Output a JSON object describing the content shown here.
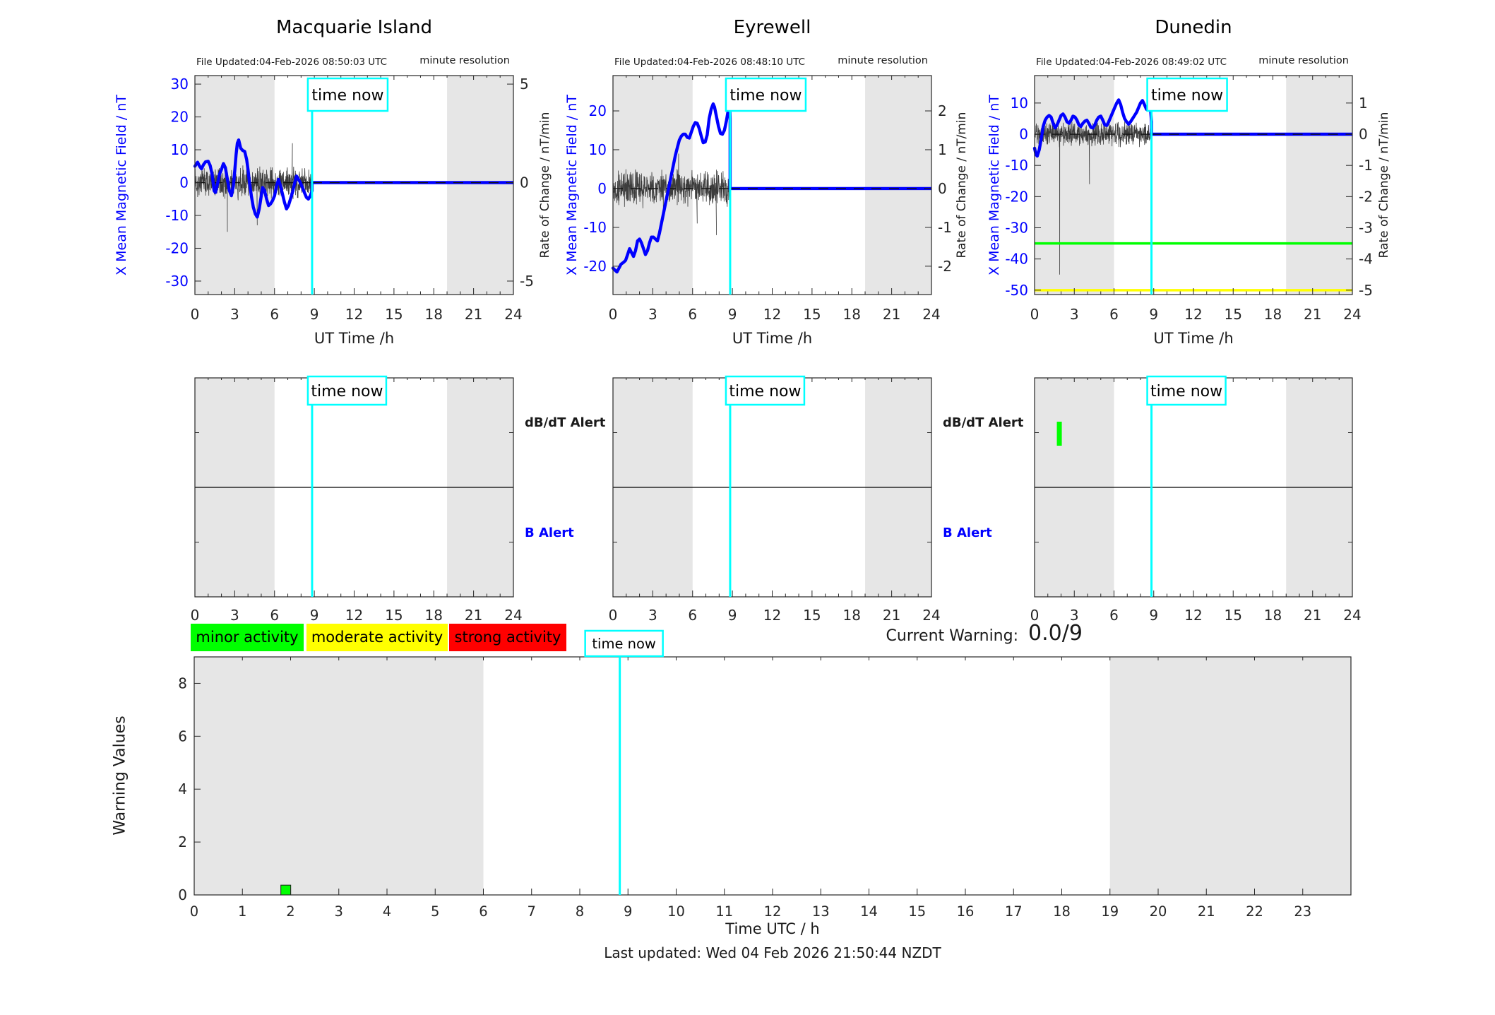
{
  "colors": {
    "blue": "#0000ff",
    "cyan": "#00ffff",
    "night_band": "#e6e6e6",
    "noise": "#3c3c3c",
    "axis": "#262626",
    "minor": "#00ff00",
    "moderate": "#ffff00",
    "strong": "#ff0000"
  },
  "time_now": {
    "label": "time now",
    "hour": 8.83
  },
  "chart_data": [
    {
      "id": "macquarie-top",
      "type": "line",
      "station": "Macquarie Island",
      "file_updated": "File Updated:04-Feb-2026 08:50:03 UTC",
      "resolution_note": "minute resolution",
      "xlabel": "UT Time /h",
      "ylabel_left": "X Mean Magnetic Field / nT",
      "ylabel_right": "Rate of Change / nT/min",
      "xlim": [
        0,
        24
      ],
      "xticks": [
        0,
        3,
        6,
        9,
        12,
        15,
        18,
        21,
        24
      ],
      "ylim": [
        -34.1,
        32.6
      ],
      "yticks_left": [
        30,
        20,
        10,
        0,
        -10,
        -20,
        -30
      ],
      "yticks_right": [
        5,
        0,
        -5
      ],
      "right_to_left_factor": 6,
      "night_bands": [
        [
          0,
          6
        ],
        [
          19,
          24
        ]
      ],
      "series": {
        "name": "X mean magnetic field",
        "points": [
          [
            0,
            5
          ],
          [
            0.2,
            6.2
          ],
          [
            0.35,
            5
          ],
          [
            0.5,
            4.2
          ],
          [
            0.65,
            5.5
          ],
          [
            0.8,
            6.3
          ],
          [
            1,
            6.5
          ],
          [
            1.15,
            5.2
          ],
          [
            1.3,
            2.5
          ],
          [
            1.45,
            -2.5
          ],
          [
            1.55,
            -3
          ],
          [
            1.7,
            -0.5
          ],
          [
            1.85,
            2.5
          ],
          [
            2,
            4
          ],
          [
            2.15,
            5.8
          ],
          [
            2.3,
            4.5
          ],
          [
            2.45,
            1
          ],
          [
            2.6,
            -2.5
          ],
          [
            2.75,
            -4
          ],
          [
            2.9,
            -1
          ],
          [
            3,
            3.5
          ],
          [
            3.1,
            8.5
          ],
          [
            3.2,
            12
          ],
          [
            3.3,
            13
          ],
          [
            3.45,
            10.5
          ],
          [
            3.6,
            9.8
          ],
          [
            3.75,
            9.5
          ],
          [
            3.9,
            7
          ],
          [
            4,
            4
          ],
          [
            4.1,
            0.5
          ],
          [
            4.25,
            -4
          ],
          [
            4.4,
            -7.5
          ],
          [
            4.55,
            -9.5
          ],
          [
            4.7,
            -10.5
          ],
          [
            4.85,
            -8
          ],
          [
            5,
            -4
          ],
          [
            5.1,
            -1.5
          ],
          [
            5.25,
            -2.5
          ],
          [
            5.4,
            -5
          ],
          [
            5.55,
            -7
          ],
          [
            5.7,
            -6.5
          ],
          [
            5.85,
            -5.5
          ],
          [
            6,
            -4
          ],
          [
            6.15,
            -1
          ],
          [
            6.3,
            1
          ],
          [
            6.45,
            -1
          ],
          [
            6.6,
            -3.5
          ],
          [
            6.75,
            -6
          ],
          [
            6.9,
            -8
          ],
          [
            7.05,
            -7
          ],
          [
            7.2,
            -5
          ],
          [
            7.35,
            -3
          ],
          [
            7.5,
            -0.5
          ],
          [
            7.65,
            2
          ],
          [
            7.8,
            1
          ],
          [
            7.95,
            0
          ],
          [
            8.1,
            -1.5
          ],
          [
            8.25,
            -3
          ],
          [
            8.4,
            -4.5
          ],
          [
            8.55,
            -5
          ],
          [
            8.7,
            -4
          ],
          [
            8.83,
            -2.5
          ]
        ]
      },
      "forecast": {
        "from_hour": 8.83,
        "value": 0
      },
      "noise": {
        "name": "rate of change",
        "amplitude": 5.5,
        "seed": 7,
        "spikes": [
          [
            2.45,
            -15
          ],
          [
            4.7,
            -13
          ],
          [
            7.35,
            12
          ]
        ]
      },
      "hlines": []
    },
    {
      "id": "eyrewell-top",
      "type": "line",
      "station": "Eyrewell",
      "file_updated": "File Updated:04-Feb-2026 08:48:10 UTC",
      "resolution_note": "minute resolution",
      "xlabel": "UT Time /h",
      "ylabel_left": "X Mean Magnetic Field / nT",
      "ylabel_right": "Rate of Change / nT/min",
      "xlim": [
        0,
        24
      ],
      "xticks": [
        0,
        3,
        6,
        9,
        12,
        15,
        18,
        21,
        24
      ],
      "ylim": [
        -27.3,
        29.1
      ],
      "yticks_left": [
        20,
        10,
        0,
        -10,
        -20
      ],
      "yticks_right": [
        2,
        1,
        0,
        -1,
        -2
      ],
      "right_to_left_factor": 10,
      "night_bands": [
        [
          0,
          6
        ],
        [
          19,
          24
        ]
      ],
      "series": {
        "name": "X mean magnetic field",
        "points": [
          [
            0,
            -20.5
          ],
          [
            0.15,
            -21
          ],
          [
            0.3,
            -21.5
          ],
          [
            0.45,
            -20.5
          ],
          [
            0.6,
            -19.5
          ],
          [
            0.8,
            -19
          ],
          [
            0.95,
            -18.5
          ],
          [
            1.1,
            -17
          ],
          [
            1.25,
            -15.5
          ],
          [
            1.4,
            -16.5
          ],
          [
            1.55,
            -17.5
          ],
          [
            1.7,
            -16
          ],
          [
            1.85,
            -13.5
          ],
          [
            2,
            -13
          ],
          [
            2.15,
            -14
          ],
          [
            2.3,
            -15.5
          ],
          [
            2.45,
            -17
          ],
          [
            2.6,
            -16
          ],
          [
            2.75,
            -14
          ],
          [
            2.9,
            -12.5
          ],
          [
            3.05,
            -12.5
          ],
          [
            3.2,
            -13
          ],
          [
            3.35,
            -13.5
          ],
          [
            3.5,
            -11.5
          ],
          [
            3.65,
            -9
          ],
          [
            3.8,
            -6.5
          ],
          [
            3.95,
            -4
          ],
          [
            4.1,
            -1.5
          ],
          [
            4.25,
            1
          ],
          [
            4.4,
            3.5
          ],
          [
            4.55,
            6
          ],
          [
            4.7,
            8.5
          ],
          [
            4.85,
            10.5
          ],
          [
            5,
            12.5
          ],
          [
            5.15,
            13.5
          ],
          [
            5.3,
            14
          ],
          [
            5.45,
            14
          ],
          [
            5.6,
            13.2
          ],
          [
            5.75,
            13
          ],
          [
            5.9,
            14.5
          ],
          [
            6.05,
            16
          ],
          [
            6.2,
            17
          ],
          [
            6.35,
            16.8
          ],
          [
            6.5,
            15.5
          ],
          [
            6.65,
            13.5
          ],
          [
            6.8,
            11.8
          ],
          [
            6.95,
            12
          ],
          [
            7.1,
            13.8
          ],
          [
            7.25,
            18
          ],
          [
            7.4,
            20.5
          ],
          [
            7.55,
            21.8
          ],
          [
            7.65,
            21
          ],
          [
            7.8,
            18.5
          ],
          [
            7.95,
            16
          ],
          [
            8.1,
            14.2
          ],
          [
            8.25,
            14
          ],
          [
            8.4,
            15
          ],
          [
            8.55,
            17.5
          ],
          [
            8.7,
            20.5
          ],
          [
            8.8,
            21.3
          ],
          [
            8.83,
            18
          ]
        ]
      },
      "forecast": {
        "from_hour": 8.83,
        "value": 0
      },
      "noise": {
        "name": "rate of change",
        "amplitude": 5.5,
        "seed": 13,
        "spikes": [
          [
            4.95,
            9
          ],
          [
            6.35,
            -9
          ],
          [
            7.8,
            -12
          ]
        ]
      },
      "hlines": []
    },
    {
      "id": "dunedin-top",
      "type": "line",
      "station": "Dunedin",
      "file_updated": "File Updated:04-Feb-2026 08:49:02 UTC",
      "resolution_note": "minute resolution",
      "xlabel": "UT Time /h",
      "ylabel_left": "X Mean Magnetic Field / nT",
      "ylabel_right": "Rate of Change / nT/min",
      "xlim": [
        0,
        24
      ],
      "xticks": [
        0,
        3,
        6,
        9,
        12,
        15,
        18,
        21,
        24
      ],
      "ylim": [
        -51.4,
        18.8
      ],
      "yticks_left": [
        10,
        0,
        -10,
        -20,
        -30,
        -40,
        -50
      ],
      "yticks_right": [
        1,
        0,
        -1,
        -2,
        -3,
        -4,
        -5
      ],
      "right_to_left_factor": 10,
      "night_bands": [
        [
          0,
          6
        ],
        [
          19,
          24
        ]
      ],
      "series": {
        "name": "X mean magnetic field",
        "points": [
          [
            0,
            -4.5
          ],
          [
            0.1,
            -6.5
          ],
          [
            0.2,
            -7
          ],
          [
            0.35,
            -5
          ],
          [
            0.5,
            -1.5
          ],
          [
            0.65,
            2.5
          ],
          [
            0.8,
            4.5
          ],
          [
            0.95,
            5.5
          ],
          [
            1.1,
            6
          ],
          [
            1.25,
            5.5
          ],
          [
            1.4,
            3.5
          ],
          [
            1.55,
            2
          ],
          [
            1.7,
            3
          ],
          [
            1.85,
            4.5
          ],
          [
            2,
            6
          ],
          [
            2.15,
            6.5
          ],
          [
            2.3,
            5.5
          ],
          [
            2.45,
            4
          ],
          [
            2.6,
            3.5
          ],
          [
            2.75,
            4.5
          ],
          [
            2.9,
            5.8
          ],
          [
            3.05,
            5.5
          ],
          [
            3.2,
            4.5
          ],
          [
            3.35,
            3
          ],
          [
            3.5,
            2.5
          ],
          [
            3.65,
            3.5
          ],
          [
            3.8,
            4.2
          ],
          [
            3.95,
            4.5
          ],
          [
            4.1,
            3.5
          ],
          [
            4.25,
            2.2
          ],
          [
            4.4,
            2
          ],
          [
            4.55,
            3
          ],
          [
            4.7,
            4.5
          ],
          [
            4.85,
            5.5
          ],
          [
            5,
            5.8
          ],
          [
            5.15,
            4.5
          ],
          [
            5.3,
            3
          ],
          [
            5.45,
            2.8
          ],
          [
            5.6,
            4
          ],
          [
            5.75,
            5.5
          ],
          [
            5.9,
            7
          ],
          [
            6.05,
            8.5
          ],
          [
            6.2,
            10
          ],
          [
            6.35,
            11
          ],
          [
            6.5,
            9.5
          ],
          [
            6.65,
            7
          ],
          [
            6.8,
            5
          ],
          [
            6.95,
            4
          ],
          [
            7.1,
            3.2
          ],
          [
            7.25,
            4
          ],
          [
            7.4,
            5
          ],
          [
            7.55,
            6
          ],
          [
            7.7,
            7
          ],
          [
            7.85,
            8.5
          ],
          [
            8,
            10
          ],
          [
            8.15,
            10.8
          ],
          [
            8.3,
            9.5
          ],
          [
            8.45,
            8
          ],
          [
            8.55,
            7.8
          ],
          [
            8.65,
            8.8
          ],
          [
            8.75,
            8.5
          ],
          [
            8.83,
            4
          ]
        ]
      },
      "forecast": {
        "from_hour": 8.83,
        "value": 0
      },
      "noise": {
        "name": "rate of change",
        "amplitude": 4.5,
        "seed": 29,
        "spikes": [
          [
            1.9,
            -45
          ],
          [
            4.15,
            -16
          ]
        ]
      },
      "hlines": [
        {
          "y": -35,
          "color": "#00ff00",
          "name": "minor-activity-threshold"
        },
        {
          "y": -50,
          "color": "#ffff00",
          "name": "moderate-activity-threshold"
        }
      ]
    },
    {
      "id": "macquarie-alerts",
      "type": "alert-panel",
      "xlim": [
        0,
        24
      ],
      "xticks": [
        0,
        3,
        6,
        9,
        12,
        15,
        18,
        21,
        24
      ],
      "night_bands": [
        [
          0,
          6
        ],
        [
          19,
          24
        ]
      ],
      "rows": [
        "dB/dT Alert",
        "B Alert"
      ],
      "show_side_labels": true,
      "events": []
    },
    {
      "id": "eyrewell-alerts",
      "type": "alert-panel",
      "xlim": [
        0,
        24
      ],
      "xticks": [
        0,
        3,
        6,
        9,
        12,
        15,
        18,
        21,
        24
      ],
      "night_bands": [
        [
          0,
          6
        ],
        [
          19,
          24
        ]
      ],
      "rows": [
        "dB/dT Alert",
        "B Alert"
      ],
      "show_side_labels": true,
      "events": []
    },
    {
      "id": "dunedin-alerts",
      "type": "alert-panel",
      "xlim": [
        0,
        24
      ],
      "xticks": [
        0,
        3,
        6,
        9,
        12,
        15,
        18,
        21,
        24
      ],
      "night_bands": [
        [
          0,
          6
        ],
        [
          19,
          24
        ]
      ],
      "rows": [
        "dB/dT Alert",
        "B Alert"
      ],
      "show_side_labels": false,
      "events": [
        {
          "row": 0,
          "t": 1.87,
          "color": "#00ff00"
        }
      ]
    },
    {
      "id": "warning-values",
      "type": "bar",
      "ylabel": "Warning Values",
      "xlabel": "Time UTC / h",
      "xlim": [
        0,
        24
      ],
      "xticks": [
        0,
        1,
        2,
        3,
        4,
        5,
        6,
        7,
        8,
        9,
        10,
        11,
        12,
        13,
        14,
        15,
        16,
        17,
        18,
        19,
        20,
        21,
        22,
        23
      ],
      "ylim": [
        0,
        9
      ],
      "yticks": [
        0,
        2,
        4,
        6,
        8
      ],
      "night_bands": [
        [
          0,
          6
        ],
        [
          19,
          24
        ]
      ],
      "bars": [
        {
          "t": 1.9,
          "value": 0.37,
          "color": "#00ff00"
        }
      ]
    }
  ],
  "legend": {
    "items": [
      {
        "label": "minor activity",
        "color": "#00ff00"
      },
      {
        "label": "moderate activity",
        "color": "#ffff00"
      },
      {
        "label": "strong activity",
        "color": "#ff0000"
      }
    ]
  },
  "current_warning": {
    "label": "Current Warning:",
    "value": "0.0/9"
  },
  "footer": {
    "last_updated": "Last updated: Wed 04 Feb 2026 21:50:44 NZDT"
  }
}
